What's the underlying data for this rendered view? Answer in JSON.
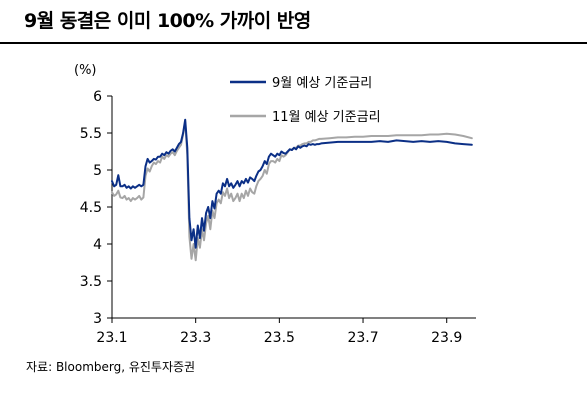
{
  "header": {
    "title": "9월 동결은 이미 100% 가까이 반영"
  },
  "source": "자료: Bloomberg, 유진투자증권",
  "chart_data": {
    "type": "line",
    "title": "9월 동결은 이미 100% 가까이 반영",
    "unit_label": "(%)",
    "xlabel": "",
    "ylabel": "",
    "ylim": [
      3,
      6
    ],
    "xlim": [
      0,
      8.7
    ],
    "yticks": [
      3,
      3.5,
      4,
      4.5,
      5,
      5.5,
      6
    ],
    "ytick_labels": [
      "3",
      "3.5",
      "4",
      "4.5",
      "5",
      "5.5",
      "6"
    ],
    "xtick_positions": [
      0,
      2,
      4,
      6,
      8
    ],
    "xtick_labels": [
      "23.1",
      "23.3",
      "23.5",
      "23.7",
      "23.9"
    ],
    "grid": false,
    "legend_position": "top-right",
    "series": [
      {
        "name": "9월 예상 기준금리",
        "color": "#0B2F86",
        "x": [
          0.0,
          0.05,
          0.1,
          0.15,
          0.2,
          0.25,
          0.3,
          0.35,
          0.4,
          0.45,
          0.5,
          0.55,
          0.6,
          0.65,
          0.7,
          0.75,
          0.8,
          0.85,
          0.9,
          0.95,
          1.0,
          1.05,
          1.1,
          1.15,
          1.2,
          1.25,
          1.3,
          1.35,
          1.4,
          1.45,
          1.5,
          1.55,
          1.6,
          1.65,
          1.7,
          1.75,
          1.8,
          1.85,
          1.9,
          1.95,
          2.0,
          2.05,
          2.1,
          2.15,
          2.2,
          2.25,
          2.3,
          2.35,
          2.4,
          2.45,
          2.5,
          2.55,
          2.6,
          2.65,
          2.7,
          2.75,
          2.8,
          2.85,
          2.9,
          2.95,
          3.0,
          3.05,
          3.1,
          3.15,
          3.2,
          3.25,
          3.3,
          3.35,
          3.4,
          3.45,
          3.5,
          3.55,
          3.6,
          3.65,
          3.7,
          3.75,
          3.8,
          3.85,
          3.9,
          3.95,
          4.0,
          4.05,
          4.1,
          4.15,
          4.2,
          4.25,
          4.3,
          4.35,
          4.4,
          4.45,
          4.5,
          4.55,
          4.6,
          4.65,
          4.7,
          4.75,
          4.8,
          4.85,
          4.9,
          4.95,
          5.0,
          5.2,
          5.4,
          5.6,
          5.8,
          6.0,
          6.2,
          6.4,
          6.6,
          6.8,
          7.0,
          7.2,
          7.4,
          7.6,
          7.8,
          8.0,
          8.2,
          8.4,
          8.6
        ],
        "y": [
          4.85,
          4.78,
          4.8,
          4.93,
          4.78,
          4.78,
          4.8,
          4.76,
          4.78,
          4.75,
          4.78,
          4.76,
          4.78,
          4.8,
          4.78,
          4.8,
          5.05,
          5.15,
          5.1,
          5.12,
          5.15,
          5.14,
          5.18,
          5.18,
          5.22,
          5.2,
          5.24,
          5.22,
          5.26,
          5.28,
          5.25,
          5.3,
          5.35,
          5.38,
          5.5,
          5.68,
          5.3,
          4.35,
          4.05,
          4.2,
          3.95,
          4.25,
          4.08,
          4.35,
          4.18,
          4.42,
          4.5,
          4.35,
          4.58,
          4.48,
          4.68,
          4.72,
          4.68,
          4.82,
          4.78,
          4.88,
          4.78,
          4.82,
          4.76,
          4.8,
          4.85,
          4.78,
          4.85,
          4.82,
          4.88,
          4.83,
          4.9,
          4.88,
          4.85,
          4.92,
          4.98,
          5.0,
          5.05,
          5.12,
          5.08,
          5.18,
          5.22,
          5.2,
          5.18,
          5.22,
          5.2,
          5.25,
          5.23,
          5.22,
          5.25,
          5.28,
          5.27,
          5.3,
          5.28,
          5.32,
          5.3,
          5.32,
          5.33,
          5.32,
          5.35,
          5.34,
          5.35,
          5.34,
          5.35,
          5.35,
          5.36,
          5.37,
          5.38,
          5.38,
          5.38,
          5.38,
          5.38,
          5.39,
          5.38,
          5.4,
          5.39,
          5.38,
          5.39,
          5.38,
          5.39,
          5.38,
          5.36,
          5.35,
          5.34
        ]
      },
      {
        "name": "11월 예상 기준금리",
        "color": "#A6A6A6",
        "x": [
          0.0,
          0.05,
          0.1,
          0.15,
          0.2,
          0.25,
          0.3,
          0.35,
          0.4,
          0.45,
          0.5,
          0.55,
          0.6,
          0.65,
          0.7,
          0.75,
          0.8,
          0.85,
          0.9,
          0.95,
          1.0,
          1.05,
          1.1,
          1.15,
          1.2,
          1.25,
          1.3,
          1.35,
          1.4,
          1.45,
          1.5,
          1.55,
          1.6,
          1.65,
          1.7,
          1.75,
          1.8,
          1.85,
          1.9,
          1.95,
          2.0,
          2.05,
          2.1,
          2.15,
          2.2,
          2.25,
          2.3,
          2.35,
          2.4,
          2.45,
          2.5,
          2.55,
          2.6,
          2.65,
          2.7,
          2.75,
          2.8,
          2.85,
          2.9,
          2.95,
          3.0,
          3.05,
          3.1,
          3.15,
          3.2,
          3.25,
          3.3,
          3.35,
          3.4,
          3.45,
          3.5,
          3.55,
          3.6,
          3.65,
          3.7,
          3.75,
          3.8,
          3.85,
          3.9,
          3.95,
          4.0,
          4.05,
          4.1,
          4.15,
          4.2,
          4.25,
          4.3,
          4.35,
          4.4,
          4.45,
          4.5,
          4.55,
          4.6,
          4.65,
          4.7,
          4.75,
          4.8,
          4.85,
          4.9,
          4.95,
          5.0,
          5.2,
          5.4,
          5.6,
          5.8,
          6.0,
          6.2,
          6.4,
          6.6,
          6.8,
          7.0,
          7.2,
          7.4,
          7.6,
          7.8,
          8.0,
          8.2,
          8.4,
          8.6
        ],
        "y": [
          4.7,
          4.65,
          4.67,
          4.72,
          4.63,
          4.62,
          4.65,
          4.6,
          4.62,
          4.58,
          4.62,
          4.6,
          4.62,
          4.65,
          4.6,
          4.63,
          4.92,
          5.02,
          4.98,
          5.05,
          5.1,
          5.08,
          5.12,
          5.1,
          5.18,
          5.15,
          5.2,
          5.18,
          5.22,
          5.24,
          5.2,
          5.26,
          5.3,
          5.34,
          5.48,
          5.65,
          5.2,
          4.1,
          3.8,
          4.0,
          3.78,
          4.08,
          3.95,
          4.2,
          4.05,
          4.28,
          4.38,
          4.2,
          4.45,
          4.35,
          4.55,
          4.6,
          4.55,
          4.7,
          4.65,
          4.75,
          4.62,
          4.68,
          4.58,
          4.62,
          4.68,
          4.58,
          4.68,
          4.62,
          4.72,
          4.65,
          4.75,
          4.7,
          4.68,
          4.78,
          4.85,
          4.88,
          4.92,
          5.0,
          4.95,
          5.08,
          5.12,
          5.12,
          5.1,
          5.15,
          5.12,
          5.2,
          5.18,
          5.2,
          5.24,
          5.28,
          5.27,
          5.3,
          5.3,
          5.33,
          5.33,
          5.35,
          5.36,
          5.36,
          5.38,
          5.38,
          5.4,
          5.4,
          5.41,
          5.42,
          5.42,
          5.43,
          5.44,
          5.44,
          5.45,
          5.45,
          5.46,
          5.46,
          5.46,
          5.47,
          5.47,
          5.47,
          5.47,
          5.48,
          5.48,
          5.49,
          5.48,
          5.46,
          5.43
        ]
      }
    ]
  }
}
